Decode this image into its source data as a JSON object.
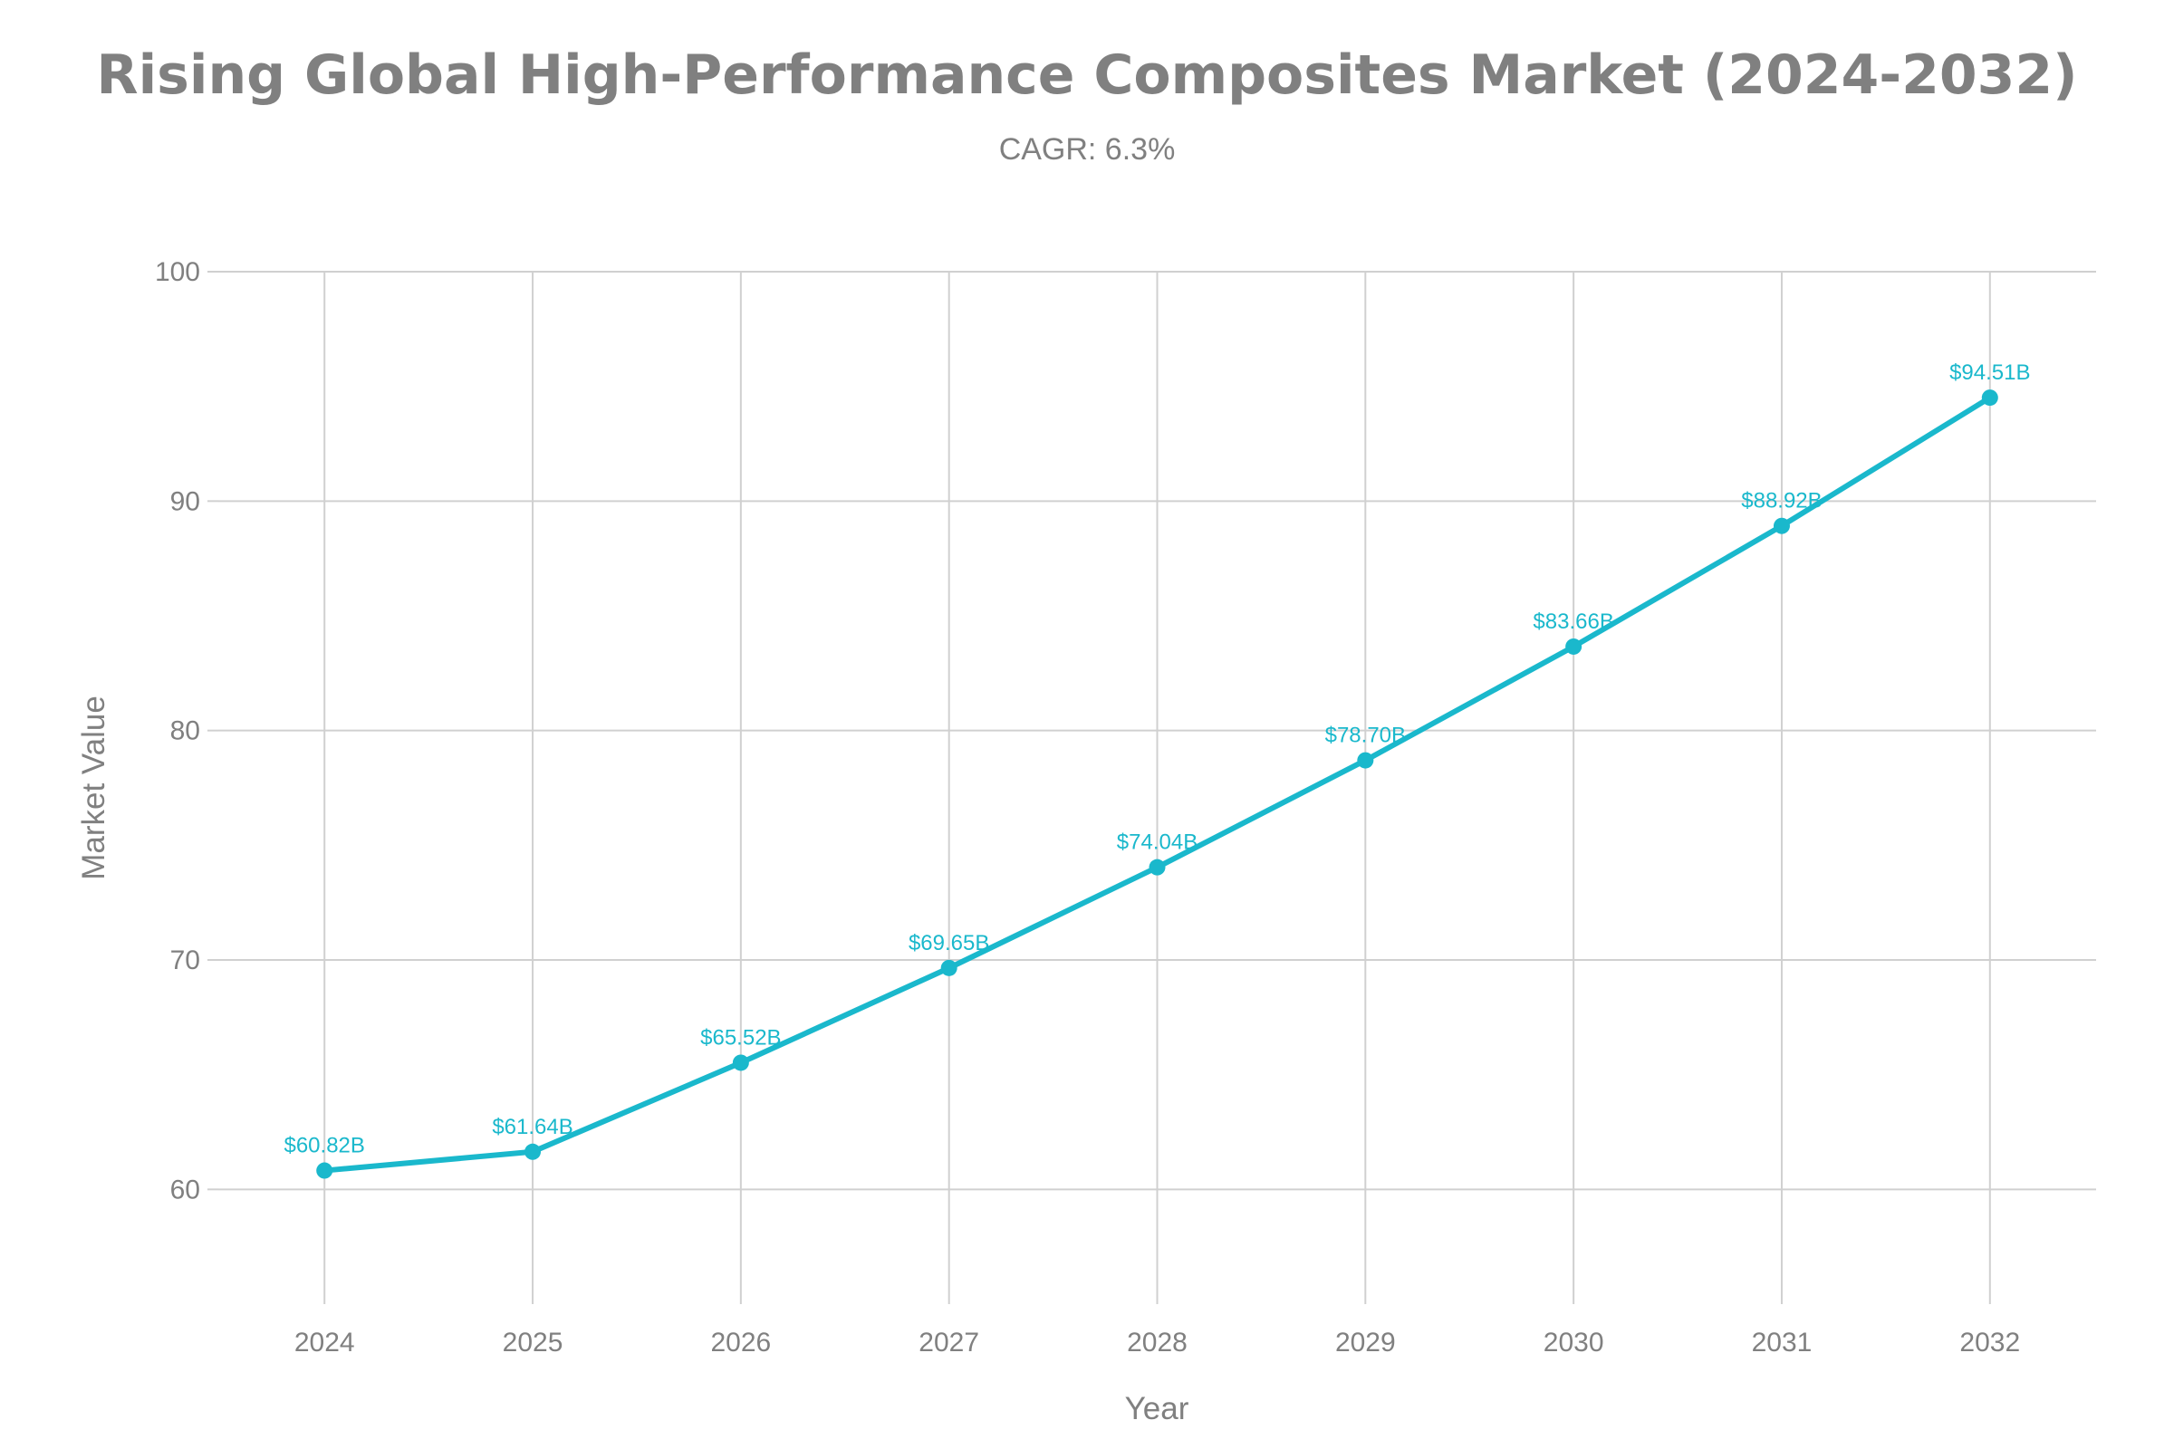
{
  "chart_data": {
    "type": "line",
    "title": "Rising Global High-Performance Composites Market (2024-2032)",
    "subtitle": "CAGR: 6.3%",
    "xlabel": "Year",
    "ylabel": "Market Value",
    "x": [
      2024,
      2025,
      2026,
      2027,
      2028,
      2029,
      2030,
      2031,
      2032
    ],
    "series": [
      {
        "values": [
          60.82,
          61.64,
          65.52,
          69.65,
          74.04,
          78.7,
          83.66,
          88.92,
          94.51
        ],
        "labels": [
          "$60.82B",
          "$61.64B",
          "$65.52B",
          "$69.65B",
          "$74.04B",
          "$78.70B",
          "$83.66B",
          "$88.92B",
          "$94.51B"
        ],
        "color": "#1ab8cc"
      }
    ],
    "xticks": [
      "2024",
      "2025",
      "2026",
      "2027",
      "2028",
      "2029",
      "2030",
      "2031",
      "2032"
    ],
    "yticks": [
      "60",
      "70",
      "80",
      "90",
      "100"
    ],
    "ylim": [
      55,
      100
    ],
    "xlim": [
      2023.49,
      2032.51
    ],
    "grid": true,
    "legend": "none"
  }
}
